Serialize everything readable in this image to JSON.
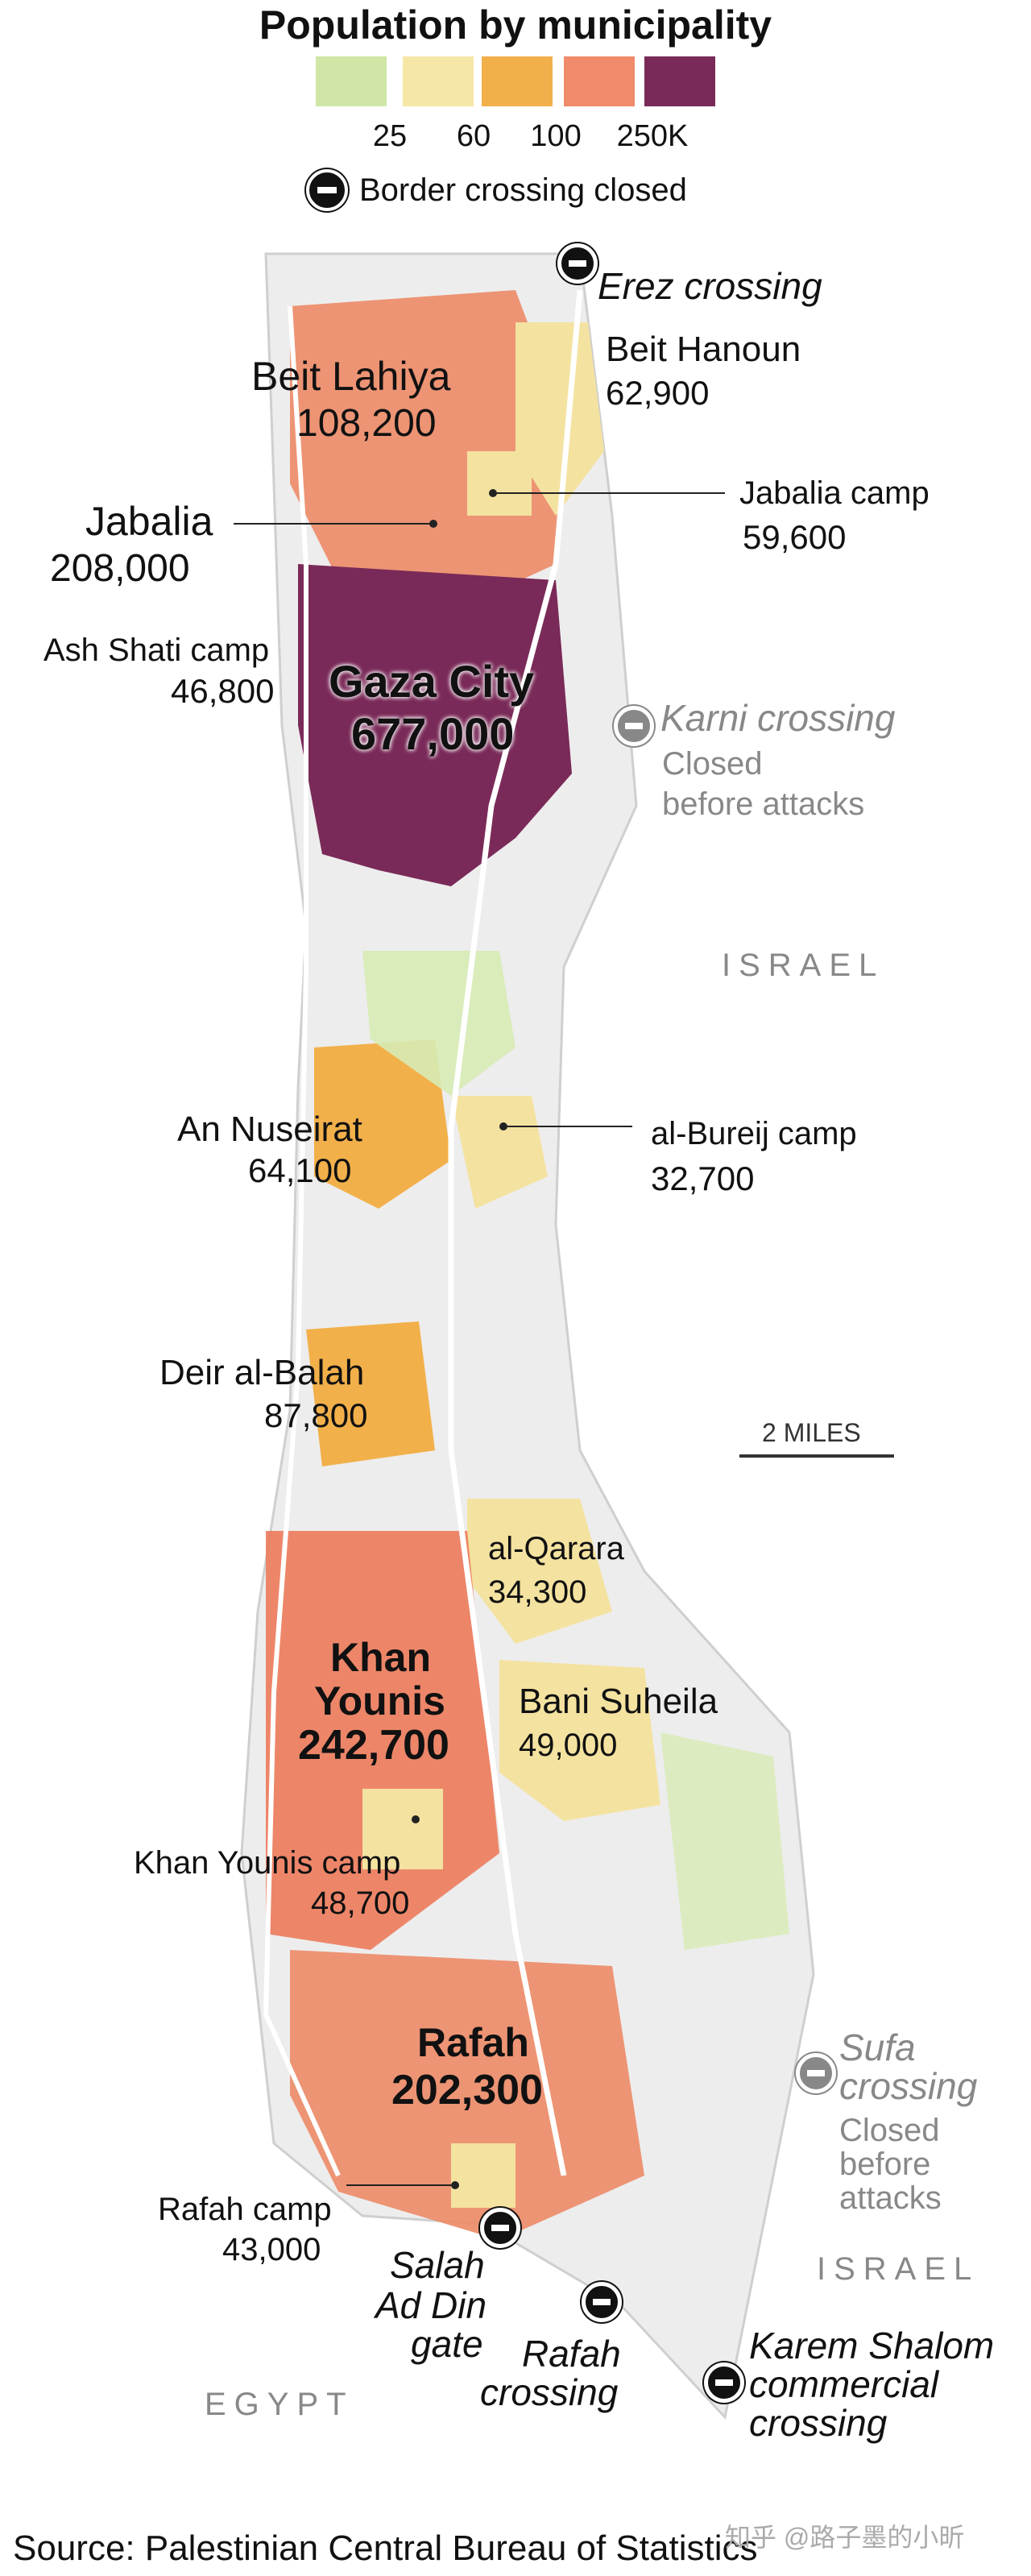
{
  "title": "Population by municipality",
  "legend": {
    "swatches": [
      {
        "color": "#b5d77a",
        "label": ""
      },
      {
        "color": "#f2d774",
        "label": "25"
      },
      {
        "color": "#f0a030",
        "label": "60"
      },
      {
        "color": "#ec7350",
        "label": "100"
      },
      {
        "color": "#6e2150",
        "label": "250K"
      }
    ],
    "closed_note": "Border crossing closed"
  },
  "places": {
    "beit_lahiya": {
      "name": "Beit Lahiya",
      "pop": "108,200"
    },
    "beit_hanoun": {
      "name": "Beit Hanoun",
      "pop": "62,900"
    },
    "jabalia": {
      "name": "Jabalia",
      "pop": "208,000"
    },
    "jabalia_camp": {
      "name": "Jabalia camp",
      "pop": "59,600"
    },
    "ash_shati": {
      "name": "Ash Shati camp",
      "pop": "46,800"
    },
    "gaza_city": {
      "name": "Gaza City",
      "pop": "677,000"
    },
    "an_nuseirat": {
      "name": "An Nuseirat",
      "pop": "64,100"
    },
    "al_bureij": {
      "name": "al-Bureij camp",
      "pop": "32,700"
    },
    "deir_al_balah": {
      "name": "Deir al-Balah",
      "pop": "87,800"
    },
    "al_qarara": {
      "name": "al-Qarara",
      "pop": "34,300"
    },
    "khan_younis": {
      "name1": "Khan",
      "name2": "Younis",
      "pop": "242,700"
    },
    "bani_suheila": {
      "name": "Bani Suheila",
      "pop": "49,000"
    },
    "khan_younis_camp": {
      "name": "Khan Younis camp",
      "pop": "48,700"
    },
    "rafah": {
      "name": "Rafah",
      "pop": "202,300"
    },
    "rafah_camp": {
      "name": "Rafah camp",
      "pop": "43,000"
    }
  },
  "crossings": {
    "erez": "Erez crossing",
    "karni": "Karni crossing",
    "karni_note1": "Closed",
    "karni_note2": "before attacks",
    "sufa1": "Sufa",
    "sufa2": "crossing",
    "sufa_note1": "Closed",
    "sufa_note2": "before",
    "sufa_note3": "attacks",
    "salah1": "Salah",
    "salah2": "Ad Din",
    "salah3": "gate",
    "rafah1": "Rafah",
    "rafah2": "crossing",
    "karem1": "Karem Shalom",
    "karem2": "commercial",
    "karem3": "crossing"
  },
  "countries": {
    "israel": "ISRAEL",
    "egypt": "EGYPT"
  },
  "scale": "2 MILES",
  "source": "Source: Palestinian Central Bureau of Statistics",
  "watermark": "知乎 @路子墨的小昕"
}
